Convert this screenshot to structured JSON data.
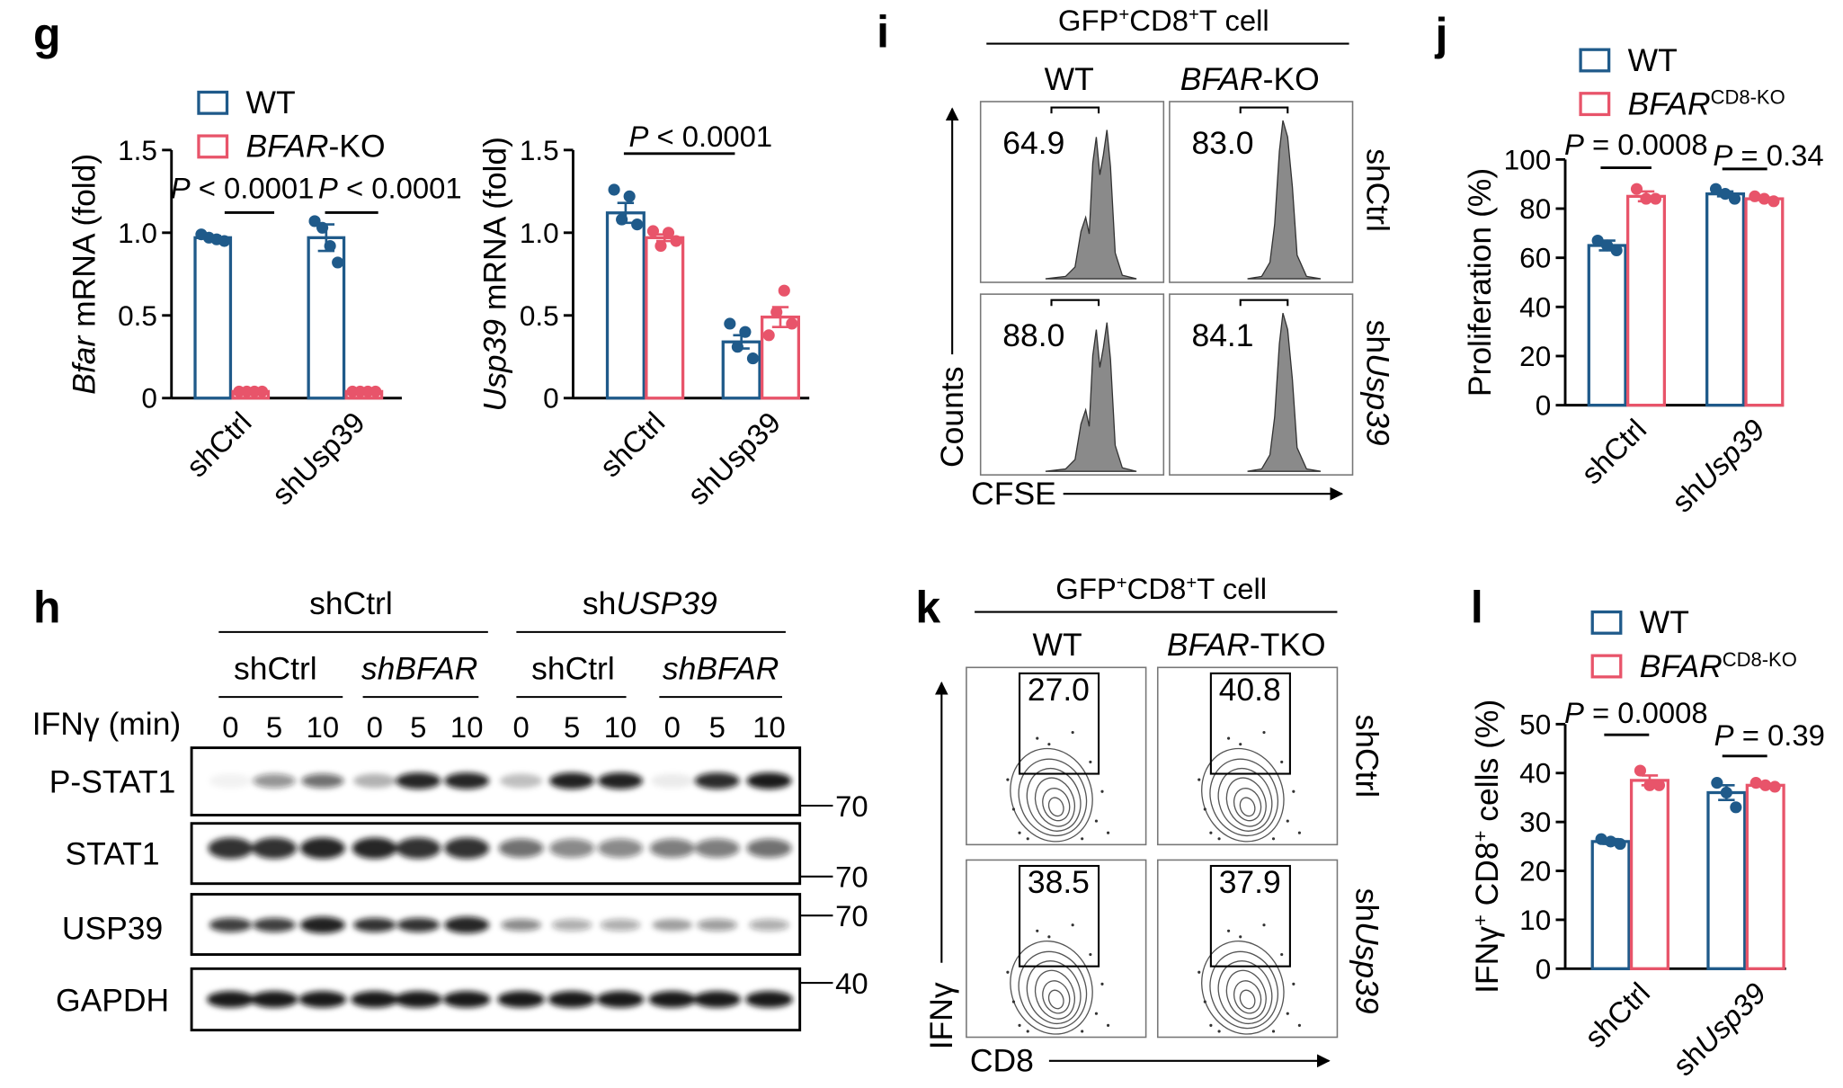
{
  "panel_labels": [
    "g",
    "h",
    "i",
    "j",
    "k",
    "l"
  ],
  "chart_data": [
    {
      "type": "bar",
      "legend": true,
      "ylabel": [
        {
          "text": "Bfar",
          "italic": true
        },
        {
          "text": " mRNA (fold)"
        }
      ],
      "categories": [
        "shCtrl",
        "shUsp39"
      ],
      "ylim": [
        0,
        1.5
      ],
      "yticks": [
        0,
        0.5,
        {
          "value": 1,
          "label": "1.0"
        },
        1.5
      ],
      "series": [
        {
          "name": "WT",
          "color": "#1f5a8a",
          "values": [
            0.97,
            0.97
          ],
          "errors": [
            0.01,
            0.08
          ],
          "points": [
            [
              0.99,
              0.97,
              0.96,
              0.95
            ],
            [
              1.07,
              1.03,
              0.92,
              0.82
            ]
          ]
        },
        {
          "name": [
            {
              "text": "BFAR",
              "italic": true
            },
            {
              "text": "-KO"
            }
          ],
          "color": "#e8546a",
          "values": [
            0.04,
            0.04
          ],
          "errors": [
            0.003,
            0.003
          ],
          "points": [
            [
              0.04,
              0.04,
              0.04,
              0.04
            ],
            [
              0.04,
              0.04,
              0.04,
              0.04
            ]
          ]
        }
      ],
      "annotations": [
        [
          {
            "text": "P",
            "italic": true
          },
          {
            "text": " < 0.0001"
          }
        ],
        [
          {
            "text": "P",
            "italic": true
          },
          {
            "text": " < 0.0001"
          }
        ]
      ]
    },
    {
      "type": "bar",
      "legend": false,
      "ylabel": [
        {
          "text": "Usp39",
          "italic": true
        },
        {
          "text": " mRNA (fold)"
        }
      ],
      "categories": [
        "shCtrl",
        "shUsp39"
      ],
      "ylim": [
        0,
        1.5
      ],
      "yticks": [
        0,
        0.5,
        {
          "value": 1,
          "label": "1.0"
        },
        1.5
      ],
      "series": [
        {
          "color": "#1f5a8a",
          "values": [
            1.12,
            0.34
          ],
          "errors": [
            0.06,
            0.04
          ],
          "points": [
            [
              1.26,
              1.08,
              1.22,
              1.05
            ],
            [
              0.45,
              0.31,
              0.4,
              0.24
            ]
          ]
        },
        {
          "color": "#e8546a",
          "values": [
            0.97,
            0.49
          ],
          "errors": [
            0.02,
            0.06
          ],
          "points": [
            [
              1.01,
              0.92,
              1.0,
              0.95
            ],
            [
              0.38,
              0.52,
              0.65,
              0.45
            ]
          ]
        }
      ],
      "annotations": [
        [
          {
            "text": "P",
            "italic": true
          },
          {
            "text": " < 0.0001"
          }
        ]
      ]
    },
    {
      "type": "bar",
      "legend": true,
      "ylabel": "Proliferation (%)",
      "categories": [
        "shCtrl",
        [
          {
            "text": "sh"
          },
          {
            "text": "Usp39",
            "italic": true
          }
        ]
      ],
      "ylim": [
        0,
        100
      ],
      "yticks": [
        0,
        20,
        40,
        60,
        80,
        100
      ],
      "series": [
        {
          "name": "WT",
          "color": "#1f5a8a",
          "values": [
            65,
            86
          ],
          "errors": [
            2,
            1
          ],
          "points": [
            [
              67,
              65,
              63
            ],
            [
              88,
              86,
              84
            ]
          ]
        },
        {
          "name": [
            {
              "text": "BFAR",
              "italic": true
            },
            {
              "text": "CD8-KO",
              "sup": true
            }
          ],
          "color": "#e8546a",
          "values": [
            85,
            84
          ],
          "errors": [
            2,
            0.5
          ],
          "points": [
            [
              88,
              84,
              84
            ],
            [
              85,
              84,
              83
            ]
          ]
        }
      ],
      "annotations": [
        [
          {
            "text": "P",
            "italic": true
          },
          {
            "text": " = 0.0008"
          }
        ],
        [
          {
            "text": "P",
            "italic": true
          },
          {
            "text": " = 0.34"
          }
        ]
      ]
    },
    {
      "type": "bar",
      "legend": true,
      "ylabel": [
        {
          "text": "IFNγ"
        },
        {
          "text": "+",
          "sup": true
        },
        {
          "text": " CD8"
        },
        {
          "text": "+",
          "sup": true
        },
        {
          "text": " cells (%)"
        }
      ],
      "categories": [
        "shCtrl",
        [
          {
            "text": "sh"
          },
          {
            "text": "Usp39",
            "italic": true
          }
        ]
      ],
      "ylim": [
        0,
        50
      ],
      "yticks": [
        0,
        10,
        20,
        30,
        40,
        50
      ],
      "series": [
        {
          "name": "WT",
          "color": "#1f5a8a",
          "values": [
            26,
            36
          ],
          "errors": [
            0.5,
            1.5
          ],
          "points": [
            [
              26.5,
              26,
              25.5
            ],
            [
              38,
              36,
              33
            ]
          ]
        },
        {
          "name": [
            {
              "text": "BFAR",
              "italic": true
            },
            {
              "text": "CD8-KO",
              "sup": true
            }
          ],
          "color": "#e8546a",
          "values": [
            38.5,
            37.5
          ],
          "errors": [
            1,
            0.3
          ],
          "points": [
            [
              40.5,
              37.5,
              37.5
            ],
            [
              38,
              37.5,
              37.2
            ]
          ]
        }
      ],
      "annotations": [
        [
          {
            "text": "P",
            "italic": true
          },
          {
            "text": " = 0.0008"
          }
        ],
        [
          {
            "text": "P",
            "italic": true
          },
          {
            "text": " = 0.39"
          }
        ]
      ]
    }
  ],
  "blot": {
    "groups": [
      "shCtrl",
      [
        {
          "text": "sh"
        },
        {
          "text": "USP39",
          "italic": true
        }
      ]
    ],
    "subgroups": [
      "shCtrl",
      [
        {
          "text": "shBFAR",
          "italic": true
        }
      ],
      "shCtrl",
      [
        {
          "text": "shBFAR",
          "italic": true
        }
      ]
    ],
    "time_label": "IFNγ (min)",
    "times": [
      0,
      5,
      10,
      0,
      5,
      10,
      0,
      5,
      10,
      0,
      5,
      10
    ],
    "rows": [
      "P-STAT1",
      "STAT1",
      "USP39",
      "GAPDH"
    ],
    "markers": [
      "70",
      "70",
      "70",
      "40"
    ]
  },
  "flow_i": {
    "header": [
      {
        "text": "GFP"
      },
      {
        "text": "+",
        "sup": true
      },
      {
        "text": "CD8"
      },
      {
        "text": "+",
        "sup": true
      },
      {
        "text": "T cell"
      }
    ],
    "columns": [
      "WT",
      [
        {
          "text": "BFAR",
          "italic": true
        },
        {
          "text": "-KO"
        }
      ]
    ],
    "rows": [
      "shCtrl",
      [
        {
          "text": "sh"
        },
        {
          "text": "Usp39",
          "italic": true
        }
      ]
    ],
    "values": [
      [
        "64.9",
        "83.0"
      ],
      [
        "88.0",
        "84.1"
      ]
    ],
    "y_label": "Counts",
    "x_label": "CFSE"
  },
  "flow_k": {
    "header": [
      {
        "text": "GFP"
      },
      {
        "text": "+",
        "sup": true
      },
      {
        "text": "CD8"
      },
      {
        "text": "+",
        "sup": true
      },
      {
        "text": "T cell"
      }
    ],
    "columns": [
      "WT",
      [
        {
          "text": "BFAR",
          "italic": true
        },
        {
          "text": "-TKO"
        }
      ]
    ],
    "rows": [
      "shCtrl",
      [
        {
          "text": "sh"
        },
        {
          "text": "Usp39",
          "italic": true
        }
      ]
    ],
    "values": [
      [
        "27.0",
        "40.8"
      ],
      [
        "38.5",
        "37.9"
      ]
    ],
    "y_label": "IFNγ",
    "x_label": "CD8"
  }
}
